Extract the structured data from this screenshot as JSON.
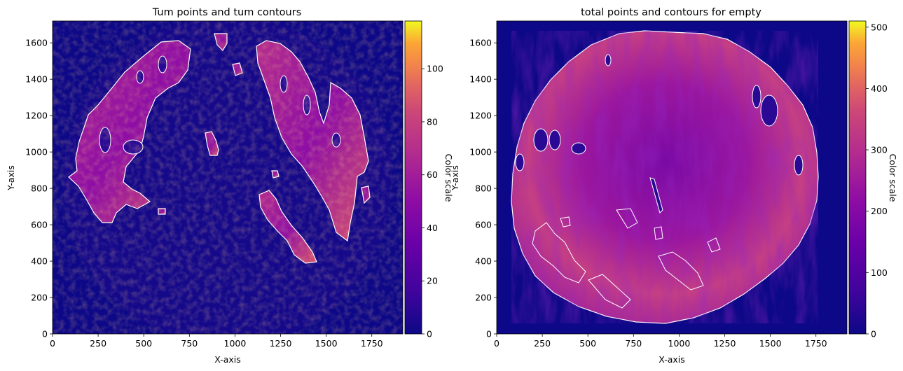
{
  "chart_data": [
    {
      "type": "heatmap",
      "title": "Tum points and tum contours",
      "xlabel": "X-axis",
      "ylabel": "Y-axis",
      "xlim": [
        0,
        1920
      ],
      "ylim": [
        0,
        1720
      ],
      "x_ticks": [
        0,
        250,
        500,
        750,
        1000,
        1250,
        1500,
        1750
      ],
      "y_ticks": [
        0,
        200,
        400,
        600,
        800,
        1000,
        1200,
        1400,
        1600
      ],
      "colorbar": {
        "label": "Color scale",
        "colormap": "plasma",
        "range": [
          0,
          118
        ],
        "ticks": [
          0,
          20,
          40,
          60,
          80,
          100
        ]
      },
      "contour_color": "#ffffff",
      "background_color": "#0d0887"
    },
    {
      "type": "heatmap",
      "title": "total points and contours for empty",
      "xlabel": "X-axis",
      "ylabel": "Y-axis",
      "xlim": [
        0,
        1920
      ],
      "ylim": [
        0,
        1720
      ],
      "x_ticks": [
        0,
        250,
        500,
        750,
        1000,
        1250,
        1500,
        1750
      ],
      "y_ticks": [
        0,
        200,
        400,
        600,
        800,
        1000,
        1200,
        1400,
        1600
      ],
      "colorbar": {
        "label": "Color scale",
        "colormap": "plasma",
        "range": [
          0,
          510
        ],
        "ticks": [
          0,
          100,
          200,
          300,
          400,
          500
        ]
      },
      "contour_color": "#ffffff",
      "background_color": "#0d0887"
    }
  ]
}
